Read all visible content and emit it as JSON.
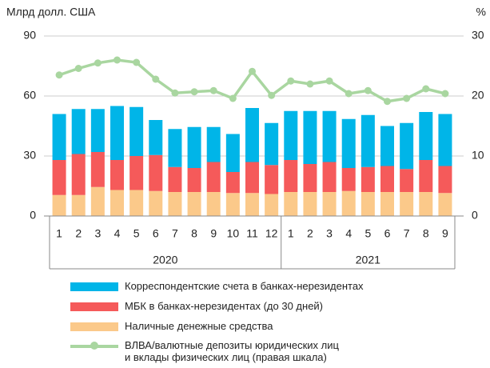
{
  "chart_data": {
    "type": "bar",
    "y_label": "Млрд долл. США",
    "y2_label": "%",
    "groups": [
      {
        "label": "2020",
        "categories": [
          "1",
          "2",
          "3",
          "4",
          "5",
          "6",
          "7",
          "8",
          "9",
          "10",
          "11",
          "12"
        ]
      },
      {
        "label": "2021",
        "categories": [
          "1",
          "2",
          "3",
          "4",
          "5",
          "6",
          "7",
          "8",
          "9"
        ]
      }
    ],
    "ylim": [
      0,
      90
    ],
    "yticks": [
      0,
      30,
      60,
      90
    ],
    "y2lim": [
      0,
      30
    ],
    "y2ticks": [
      0,
      10,
      20,
      30
    ],
    "grid": true,
    "series": [
      {
        "name": "Наличные денежные средства",
        "color": "#fbc98a",
        "values": [
          10.5,
          10.5,
          14.5,
          13,
          13,
          12.5,
          12,
          12,
          12,
          11.5,
          11.5,
          11,
          12,
          12,
          12,
          12.5,
          12,
          12,
          12,
          12,
          11.5
        ]
      },
      {
        "name": "МБК в банках-нерезидентах (до 30 дней)",
        "color": "#f55a5a",
        "values": [
          17.5,
          20.5,
          17.5,
          15,
          17,
          18,
          12.5,
          12,
          15,
          10.5,
          15.5,
          14.5,
          16,
          14,
          15,
          11.5,
          12.5,
          13,
          11.5,
          16,
          13.5
        ]
      },
      {
        "name": "Корреспондентские счета в банках-нерезидентах",
        "color": "#00b5e8",
        "values": [
          23,
          22.5,
          21.5,
          27,
          24.5,
          17.5,
          19,
          20.5,
          17.5,
          19,
          27,
          21,
          24.5,
          26.5,
          25.5,
          24.5,
          26,
          20,
          23,
          24,
          26
        ]
      },
      {
        "name": "ВЛВА/валютные депозиты юридических лиц\nи вклады физических лиц (правая шкала)",
        "color": "#a9d6a0",
        "type": "line",
        "axis": "y2",
        "values": [
          23.5,
          24.6,
          25.5,
          26,
          25.6,
          22.8,
          20.5,
          20.7,
          20.9,
          19.6,
          24.1,
          20.1,
          22.5,
          22,
          22.5,
          20.4,
          20.9,
          19.1,
          19.6,
          21.2,
          20.4
        ]
      }
    ]
  }
}
